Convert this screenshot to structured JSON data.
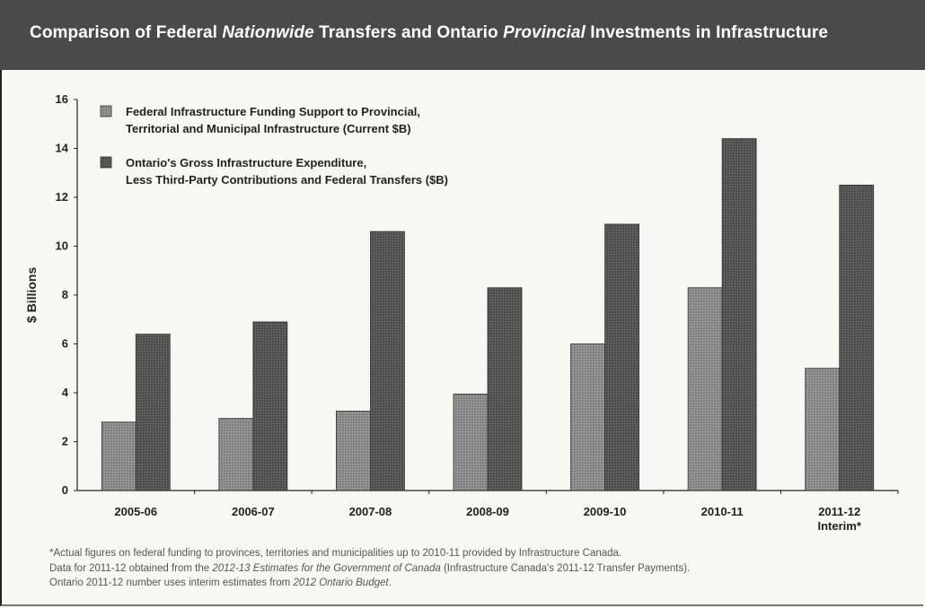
{
  "header": {
    "title_parts": [
      {
        "text": "Comparison of Federal ",
        "italic": false
      },
      {
        "text": "Nationwide",
        "italic": true
      },
      {
        "text": " Transfers and Ontario ",
        "italic": false
      },
      {
        "text": "Provincial",
        "italic": true
      },
      {
        "text": " Investments in Infrastructure",
        "italic": false
      }
    ]
  },
  "chart_data": {
    "type": "bar",
    "categories": [
      [
        "2005-06"
      ],
      [
        "2006-07"
      ],
      [
        "2007-08"
      ],
      [
        "2008-09"
      ],
      [
        "2009-10"
      ],
      [
        "2010-11"
      ],
      [
        "2011-12",
        "Interim*"
      ]
    ],
    "series": [
      {
        "name_lines": [
          "Federal Infrastructure Funding Support to Provincial,",
          "Territorial and Municipal Infrastructure (Current $B)"
        ],
        "values": [
          2.8,
          2.95,
          3.25,
          3.95,
          6.0,
          8.3,
          5.0
        ],
        "color": "#8a8a8a"
      },
      {
        "name_lines": [
          "Ontario's Gross Infrastructure Expenditure,",
          "Less Third-Party Contributions and Federal Transfers ($B)"
        ],
        "values": [
          6.4,
          6.9,
          10.6,
          8.3,
          10.9,
          14.4,
          12.5
        ],
        "color": "#555555"
      }
    ],
    "ylabel": "$ Billions",
    "ylim": [
      0,
      16
    ],
    "yticks": [
      0,
      2,
      4,
      6,
      8,
      10,
      12,
      14,
      16
    ],
    "legend": "top-left",
    "grid": false
  },
  "footnote": {
    "lines": [
      [
        {
          "text": "*Actual figures on federal funding to provinces, territories and municipalities up to 2010-11 provided by Infrastructure Canada.",
          "italic": false
        }
      ],
      [
        {
          "text": "Data for 2011-12 obtained from the ",
          "italic": false
        },
        {
          "text": "2012-13 Estimates for the Government of Canada",
          "italic": true
        },
        {
          "text": " (Infrastructure Canada's 2011-12 Transfer Payments).",
          "italic": false
        }
      ],
      [
        {
          "text": "Ontario 2011-12 number uses interim estimates from ",
          "italic": false
        },
        {
          "text": "2012 Ontario Budget",
          "italic": true
        },
        {
          "text": ".",
          "italic": false
        }
      ]
    ]
  }
}
